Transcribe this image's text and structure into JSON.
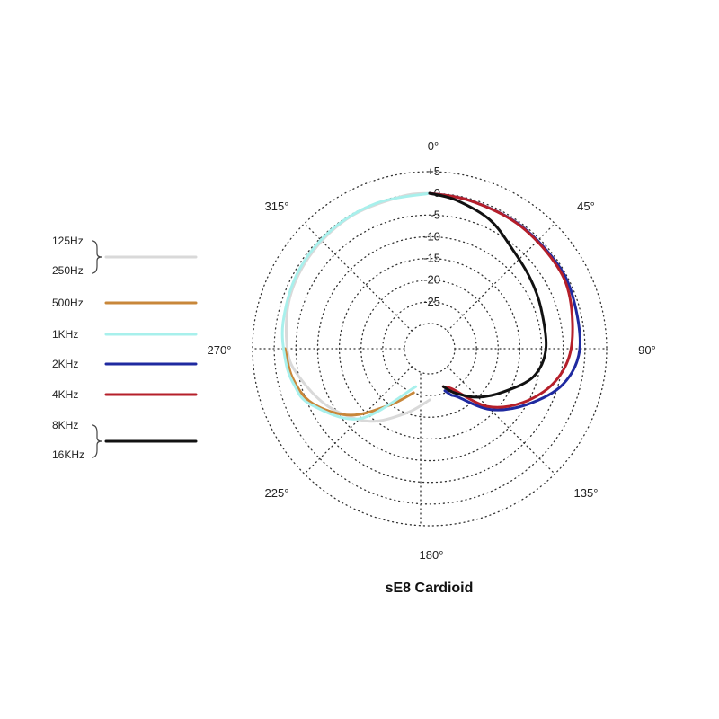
{
  "chart_data": {
    "type": "polar-line",
    "title": "sE8  Cardioid",
    "radial_ticks": [
      "+5",
      "0",
      "-5",
      "-10",
      "-15",
      "-20",
      "-25"
    ],
    "radial_values": [
      5,
      0,
      -5,
      -10,
      -15,
      -20,
      -25
    ],
    "radial_range": [
      -30,
      5
    ],
    "angle_labels": [
      {
        "deg": 0,
        "label": "0°"
      },
      {
        "deg": 45,
        "label": "45°"
      },
      {
        "deg": 90,
        "label": "90°"
      },
      {
        "deg": 135,
        "label": "135°"
      },
      {
        "deg": 180,
        "label": "180°"
      },
      {
        "deg": 225,
        "label": "225°"
      },
      {
        "deg": 270,
        "label": "270°"
      },
      {
        "deg": 315,
        "label": "315°"
      }
    ],
    "grid": true,
    "legend_position": "left",
    "legend": [
      {
        "labels": [
          "125Hz",
          "250Hz"
        ],
        "color": "#d9d9d9",
        "bracket": true
      },
      {
        "labels": [
          "500Hz"
        ],
        "color": "#c8873a",
        "bracket": false
      },
      {
        "labels": [
          "1KHz"
        ],
        "color": "#a8f0ec",
        "bracket": false
      },
      {
        "labels": [
          "2KHz"
        ],
        "color": "#1f2aa0",
        "bracket": false
      },
      {
        "labels": [
          "4KHz"
        ],
        "color": "#b51f2a",
        "bracket": false
      },
      {
        "labels": [
          "8KHz",
          "16KHz"
        ],
        "color": "#111111",
        "bracket": true
      }
    ],
    "series": [
      {
        "color": "#d9d9d9",
        "angles": [
          180,
          200,
          220,
          240,
          258,
          270,
          290,
          310,
          330,
          350,
          360
        ],
        "values": [
          -24,
          -20,
          -14,
          -9,
          -5,
          -3,
          -1.5,
          -0.8,
          -0.3,
          -0.1,
          0
        ]
      },
      {
        "color": "#c8873a",
        "angles": [
          200,
          215,
          230,
          245,
          258,
          270
        ],
        "values": [
          -25,
          -20,
          -12,
          -6,
          -3.5,
          -2.5
        ]
      },
      {
        "color": "#a8f0ec",
        "angles": [
          200,
          225,
          245,
          255,
          265,
          280,
          300,
          320,
          340,
          360
        ],
        "values": [
          -26.5,
          -13,
          -5.5,
          -3.5,
          -2.5,
          -1.5,
          -0.7,
          -0.3,
          -0.1,
          0
        ]
      },
      {
        "color": "#1f2aa0",
        "angles": [
          0,
          15,
          35,
          55,
          70,
          90,
          105,
          120,
          135,
          150,
          155,
          160
        ],
        "values": [
          0,
          -0.4,
          -0.5,
          -0.5,
          -0.7,
          -1.2,
          -4,
          -10,
          -16,
          -23,
          -24,
          -25.5
        ]
      },
      {
        "color": "#b51f2a",
        "angles": [
          0,
          15,
          35,
          55,
          70,
          90,
          105,
          120,
          135,
          150,
          155,
          160
        ],
        "values": [
          0,
          -0.4,
          -0.6,
          -0.8,
          -1.4,
          -3.2,
          -6,
          -11,
          -17,
          -25,
          -25.8,
          -26.5
        ]
      },
      {
        "color": "#111111",
        "angles": [
          0,
          10,
          25,
          40,
          55,
          70,
          90,
          105,
          120,
          135,
          150,
          160
        ],
        "values": [
          0,
          -1,
          -3,
          -6,
          -7.5,
          -8.5,
          -9,
          -11,
          -16,
          -20,
          -24,
          -26.5
        ]
      }
    ]
  }
}
